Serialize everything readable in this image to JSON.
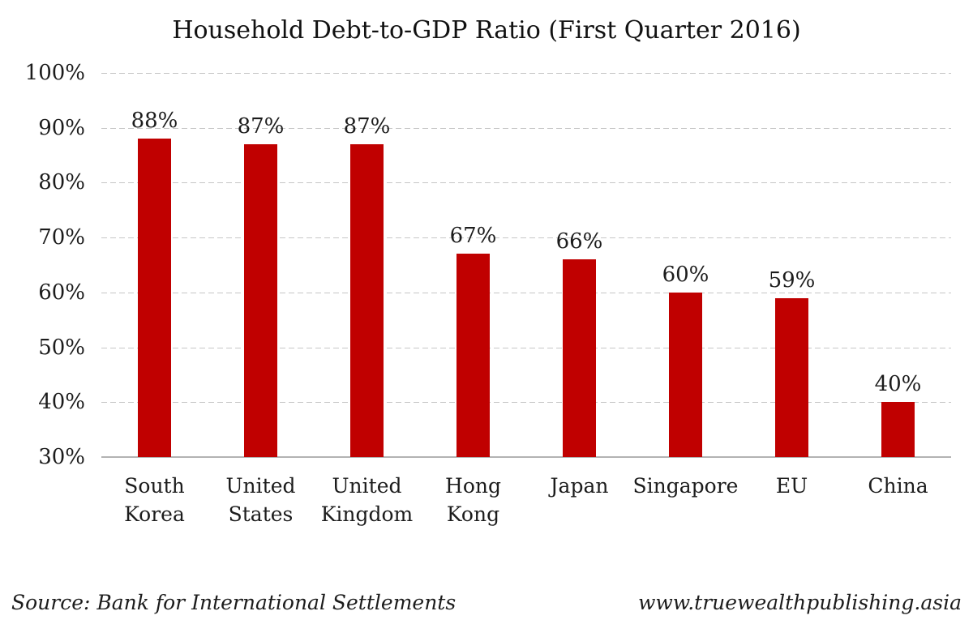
{
  "chart_data": {
    "type": "bar",
    "title": "Household Debt-to-GDP Ratio (First Quarter 2016)",
    "categories": [
      "South Korea",
      "United States",
      "United Kingdom",
      "Hong Kong",
      "Japan",
      "Singapore",
      "EU",
      "China"
    ],
    "category_display": [
      "South\nKorea",
      "United\nStates",
      "United\nKingdom",
      "Hong\nKong",
      "Japan",
      "Singapore",
      "EU",
      "China"
    ],
    "values": [
      88,
      87,
      87,
      67,
      66,
      60,
      59,
      40
    ],
    "value_labels": [
      "88%",
      "87%",
      "87%",
      "67%",
      "66%",
      "60%",
      "59%",
      "40%"
    ],
    "xlabel": "",
    "ylabel": "",
    "ylim": [
      30,
      100
    ],
    "ytick_step": 10,
    "ytick_labels": [
      "100%",
      "90%",
      "80%",
      "70%",
      "60%",
      "50%",
      "40%",
      "30%"
    ],
    "grid": "horizontal-dashed",
    "legend": "none",
    "bar_color": "#c00000",
    "gridline_color": "#c6c6c6",
    "baseline_color": "#b3b3b3",
    "text_color": "#1c1c1c"
  },
  "footer": {
    "source": "Source: Bank for International Settlements",
    "website": "www.truewealthpublishing.asia"
  }
}
